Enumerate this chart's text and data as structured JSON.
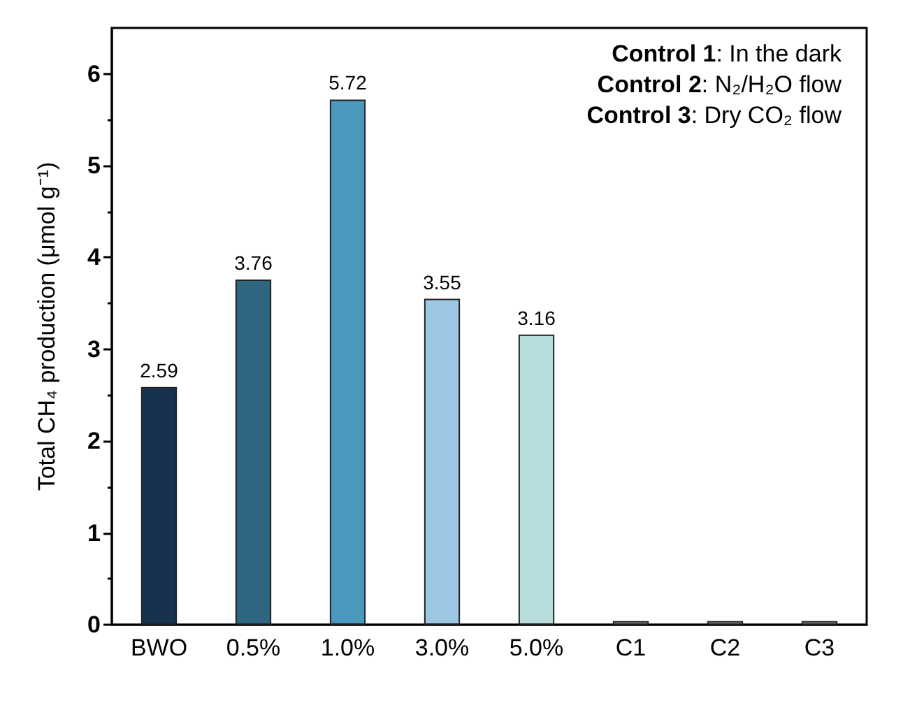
{
  "chart_data": {
    "type": "bar",
    "ylabel": "Total CH₄ production (μmol g⁻¹)",
    "categories": [
      "BWO",
      "0.5%",
      "1.0%",
      "3.0%",
      "5.0%",
      "C1",
      "C2",
      "C3"
    ],
    "values": [
      2.59,
      3.76,
      5.72,
      3.55,
      3.16,
      0.04,
      0.04,
      0.04
    ],
    "colors": [
      "#17324f",
      "#2e6580",
      "#4a98bd",
      "#9dc8e3",
      "#b6dcdb",
      "#a6a6a6",
      "#a6a6a6",
      "#a6a6a6"
    ],
    "value_labels": [
      "2.59",
      "3.76",
      "5.72",
      "3.55",
      "3.16",
      null,
      null,
      null
    ],
    "ylim": [
      0,
      6.5
    ],
    "yticks": [
      0,
      {
        "value": 0.5,
        "label": null
      },
      1,
      {
        "value": 1.5,
        "label": null
      },
      2,
      {
        "value": 2.5,
        "label": null
      },
      3,
      {
        "value": 3.5,
        "label": null
      },
      4,
      {
        "value": 4.5,
        "label": null
      },
      5,
      {
        "value": 5.5,
        "label": null
      },
      6
    ],
    "annotations": [
      "Control 1: In the dark",
      "Control 2: N₂/H₂O flow",
      "Control 3: Dry CO₂ flow"
    ]
  }
}
